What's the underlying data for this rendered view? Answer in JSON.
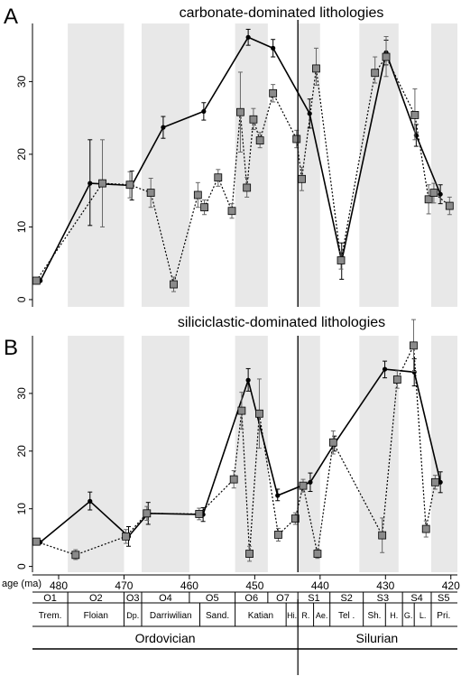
{
  "colors": {
    "band": "#e8e8e8",
    "carbonate_line": "#000000",
    "siliciclastic_marker": "#8a8a8a",
    "axis": "#000000"
  },
  "x_axis": {
    "label": "age (ma)",
    "ticks": [
      480,
      470,
      460,
      450,
      440,
      430,
      420
    ],
    "range": [
      484,
      419
    ]
  },
  "boundary_age": 443.4,
  "shaded_bands": [
    [
      478.6,
      470.0
    ],
    [
      467.3,
      460.0
    ],
    [
      453.0,
      448.0
    ],
    [
      443.4,
      440.0
    ],
    [
      434.0,
      428.0
    ],
    [
      423.0,
      419.0
    ]
  ],
  "stages": [
    {
      "code": "O1",
      "start": 485.4,
      "end": 478.6
    },
    {
      "code": "O2",
      "start": 478.6,
      "end": 470.0
    },
    {
      "code": "O3",
      "start": 470.0,
      "end": 467.3
    },
    {
      "code": "O4",
      "start": 467.3,
      "end": 460.0
    },
    {
      "code": "O5",
      "start": 460.0,
      "end": 453.0
    },
    {
      "code": "O6",
      "start": 453.0,
      "end": 448.0
    },
    {
      "code": "O7",
      "start": 448.0,
      "end": 443.4
    },
    {
      "code": "S1",
      "start": 443.4,
      "end": 438.5
    },
    {
      "code": "S2",
      "start": 438.5,
      "end": 433.4
    },
    {
      "code": "S3",
      "start": 433.4,
      "end": 427.4
    },
    {
      "code": "S4",
      "start": 427.4,
      "end": 423.0
    },
    {
      "code": "S5",
      "start": 423.0,
      "end": 419.2
    }
  ],
  "ages": [
    {
      "name": "Trem.",
      "start": 485.4,
      "end": 478.6
    },
    {
      "name": "Floian",
      "start": 478.6,
      "end": 470.0
    },
    {
      "name": "Dp.",
      "start": 470.0,
      "end": 467.3
    },
    {
      "name": "Darriwilian",
      "start": 467.3,
      "end": 458.4
    },
    {
      "name": "Sand.",
      "start": 458.4,
      "end": 453.0
    },
    {
      "name": "Katian",
      "start": 453.0,
      "end": 445.2
    },
    {
      "name": "Hi.",
      "start": 445.2,
      "end": 443.4
    },
    {
      "name": "R.",
      "start": 443.4,
      "end": 441.0
    },
    {
      "name": "Ae.",
      "start": 441.0,
      "end": 438.5
    },
    {
      "name": "Tel .",
      "start": 438.5,
      "end": 433.4
    },
    {
      "name": "Sh.",
      "start": 433.4,
      "end": 430.0
    },
    {
      "name": "H.",
      "start": 430.0,
      "end": 427.4
    },
    {
      "name": "G.",
      "start": 427.4,
      "end": 425.6
    },
    {
      "name": "L.",
      "start": 425.6,
      "end": 423.0
    },
    {
      "name": "Pri.",
      "start": 423.0,
      "end": 419.2
    }
  ],
  "periods": [
    {
      "name": "Ordovician",
      "start": 485.4,
      "end": 443.4
    },
    {
      "name": "Silurian",
      "start": 443.4,
      "end": 419.2
    }
  ],
  "chart_data": [
    {
      "type": "line",
      "panel_letter": "A",
      "title": "carbonate-dominated lithologies",
      "ylim": [
        -1,
        38
      ],
      "yticks": [
        0,
        10,
        20,
        30
      ],
      "series": [
        {
          "style": "solid-circle",
          "points": [
            {
              "x": 482.8,
              "y": 2.6,
              "lo": null,
              "hi": null
            },
            {
              "x": 475.2,
              "y": 16.0,
              "lo": 10.2,
              "hi": 22.0
            },
            {
              "x": 468.8,
              "y": 15.7,
              "lo": 13.7,
              "hi": 17.7
            },
            {
              "x": 464.0,
              "y": 23.7,
              "lo": 22.2,
              "hi": 25.2
            },
            {
              "x": 457.8,
              "y": 25.9,
              "lo": 24.7,
              "hi": 27.1
            },
            {
              "x": 451.0,
              "y": 36.1,
              "lo": 35.0,
              "hi": 37.2
            },
            {
              "x": 447.2,
              "y": 34.6,
              "lo": 33.4,
              "hi": 35.8
            },
            {
              "x": 441.6,
              "y": 25.6,
              "lo": 23.6,
              "hi": 27.6
            },
            {
              "x": 436.7,
              "y": 5.3,
              "lo": 2.8,
              "hi": 7.8
            },
            {
              "x": 429.9,
              "y": 34.0,
              "lo": 32.3,
              "hi": 35.7
            },
            {
              "x": 425.3,
              "y": 22.6,
              "lo": 21.1,
              "hi": 24.1
            },
            {
              "x": 421.6,
              "y": 14.5,
              "lo": 13.2,
              "hi": 15.8
            }
          ]
        },
        {
          "style": "dotted-square",
          "points": [
            {
              "x": 483.4,
              "y": 2.6,
              "lo": null,
              "hi": null
            },
            {
              "x": 473.3,
              "y": 16.0,
              "lo": 10.0,
              "hi": 22.0
            },
            {
              "x": 469.1,
              "y": 15.8,
              "lo": 14.0,
              "hi": 17.6
            },
            {
              "x": 465.9,
              "y": 14.7,
              "lo": 12.7,
              "hi": 16.7
            },
            {
              "x": 462.4,
              "y": 2.1,
              "lo": 1.1,
              "hi": 3.1
            },
            {
              "x": 458.7,
              "y": 14.4,
              "lo": 12.7,
              "hi": 16.1
            },
            {
              "x": 457.7,
              "y": 12.7,
              "lo": 11.7,
              "hi": 13.7
            },
            {
              "x": 455.6,
              "y": 16.8,
              "lo": 15.6,
              "hi": 17.9
            },
            {
              "x": 453.5,
              "y": 12.2,
              "lo": 11.2,
              "hi": 13.2
            },
            {
              "x": 452.2,
              "y": 25.8,
              "lo": 20.3,
              "hi": 31.3
            },
            {
              "x": 451.2,
              "y": 15.4,
              "lo": 14.1,
              "hi": 16.8
            },
            {
              "x": 450.2,
              "y": 24.8,
              "lo": 23.4,
              "hi": 26.3
            },
            {
              "x": 449.2,
              "y": 21.9,
              "lo": 20.9,
              "hi": 23.0
            },
            {
              "x": 447.2,
              "y": 28.4,
              "lo": 27.2,
              "hi": 29.6
            },
            {
              "x": 443.6,
              "y": 22.1,
              "lo": 20.9,
              "hi": 23.3
            },
            {
              "x": 442.8,
              "y": 16.6,
              "lo": 15.0,
              "hi": 18.2
            },
            {
              "x": 440.6,
              "y": 31.8,
              "lo": 29.5,
              "hi": 34.6
            },
            {
              "x": 436.8,
              "y": 5.4,
              "lo": 4.2,
              "hi": 6.6
            },
            {
              "x": 431.6,
              "y": 31.2,
              "lo": 29.8,
              "hi": 33.4
            },
            {
              "x": 429.9,
              "y": 33.4,
              "lo": 30.7,
              "hi": 36.2
            },
            {
              "x": 425.5,
              "y": 25.4,
              "lo": 22.0,
              "hi": 29.0
            },
            {
              "x": 423.4,
              "y": 13.8,
              "lo": 11.8,
              "hi": 15.8
            },
            {
              "x": 422.6,
              "y": 14.7,
              "lo": 13.3,
              "hi": 16.0
            },
            {
              "x": 420.2,
              "y": 12.9,
              "lo": 11.7,
              "hi": 14.1
            }
          ]
        }
      ]
    },
    {
      "type": "line",
      "panel_letter": "B",
      "title": "siliciclastic-dominated lithologies",
      "ylim": [
        -1,
        40
      ],
      "yticks": [
        0,
        10,
        20,
        30
      ],
      "series": [
        {
          "style": "solid-circle",
          "points": [
            {
              "x": 482.8,
              "y": 4.2,
              "lo": null,
              "hi": null
            },
            {
              "x": 475.2,
              "y": 11.3,
              "lo": 9.8,
              "hi": 12.9
            },
            {
              "x": 469.3,
              "y": 5.2,
              "lo": 3.5,
              "hi": 6.9
            },
            {
              "x": 466.3,
              "y": 9.2,
              "lo": 7.3,
              "hi": 11.1
            },
            {
              "x": 457.9,
              "y": 9.0,
              "lo": 7.8,
              "hi": 10.2
            },
            {
              "x": 451.0,
              "y": 32.3,
              "lo": 30.4,
              "hi": 34.3
            },
            {
              "x": 446.5,
              "y": 12.3,
              "lo": 11.4,
              "hi": 13.4
            },
            {
              "x": 441.5,
              "y": 14.6,
              "lo": 13.0,
              "hi": 16.2
            },
            {
              "x": 437.8,
              "y": 21.3,
              "lo": 20.0,
              "hi": 22.6
            },
            {
              "x": 430.1,
              "y": 34.2,
              "lo": 32.7,
              "hi": 35.6
            },
            {
              "x": 425.6,
              "y": 33.7,
              "lo": 31.3,
              "hi": 36.0
            },
            {
              "x": 421.6,
              "y": 14.6,
              "lo": 12.8,
              "hi": 16.4
            }
          ]
        },
        {
          "style": "dotted-square",
          "points": [
            {
              "x": 483.4,
              "y": 4.3,
              "lo": null,
              "hi": null
            },
            {
              "x": 477.4,
              "y": 2.0,
              "lo": 1.2,
              "hi": 2.9
            },
            {
              "x": 469.7,
              "y": 5.2,
              "lo": 4.0,
              "hi": 6.4
            },
            {
              "x": 466.5,
              "y": 9.2,
              "lo": 8.0,
              "hi": 10.4
            },
            {
              "x": 458.5,
              "y": 9.1,
              "lo": 8.1,
              "hi": 10.1
            },
            {
              "x": 453.2,
              "y": 15.1,
              "lo": 13.6,
              "hi": 16.6
            },
            {
              "x": 452.0,
              "y": 27.0,
              "lo": 23.8,
              "hi": 30.2
            },
            {
              "x": 450.8,
              "y": 2.2,
              "lo": 0.9,
              "hi": 3.5
            },
            {
              "x": 449.3,
              "y": 26.5,
              "lo": 20.5,
              "hi": 32.5
            },
            {
              "x": 446.4,
              "y": 5.5,
              "lo": 4.4,
              "hi": 6.6
            },
            {
              "x": 443.8,
              "y": 8.3,
              "lo": 7.3,
              "hi": 9.3
            },
            {
              "x": 442.6,
              "y": 14.0,
              "lo": 12.9,
              "hi": 15.1
            },
            {
              "x": 440.4,
              "y": 2.2,
              "lo": 1.4,
              "hi": 3.0
            },
            {
              "x": 438.0,
              "y": 21.5,
              "lo": 19.5,
              "hi": 23.5
            },
            {
              "x": 430.5,
              "y": 5.4,
              "lo": 2.4,
              "hi": 8.4
            },
            {
              "x": 428.2,
              "y": 32.4,
              "lo": 30.9,
              "hi": 33.9
            },
            {
              "x": 425.7,
              "y": 38.3,
              "lo": 33.8,
              "hi": 42.8
            },
            {
              "x": 423.8,
              "y": 6.5,
              "lo": 5.1,
              "hi": 7.9
            },
            {
              "x": 422.4,
              "y": 14.6,
              "lo": 13.4,
              "hi": 15.8
            }
          ]
        }
      ]
    }
  ]
}
